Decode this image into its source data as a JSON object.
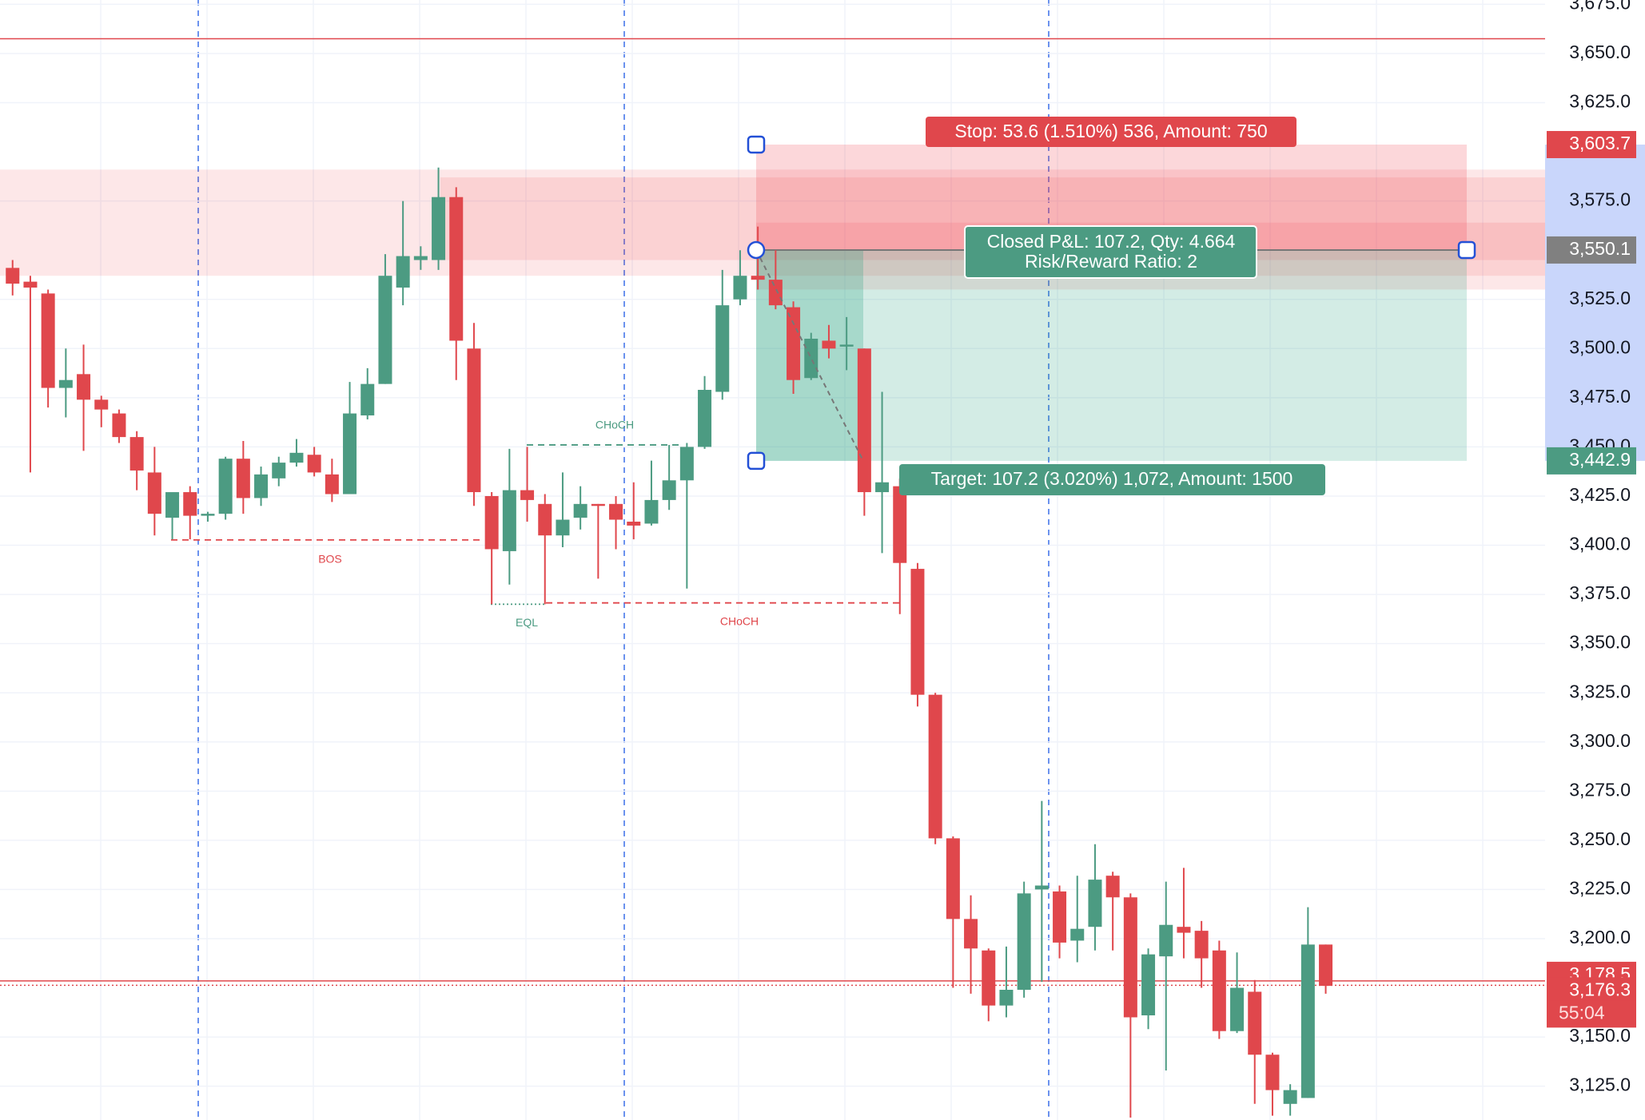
{
  "chart_data": {
    "type": "candlestick",
    "up_color": "#4c9b82",
    "down_color": "#e0474c",
    "candles": {
      "open": [
        3541,
        3534,
        3528,
        3480,
        3487,
        3474,
        3467,
        3455,
        3437,
        3414,
        3427,
        3415,
        3416,
        3444,
        3424,
        3434,
        3442,
        3446,
        3436,
        3426,
        3466,
        3482,
        3531,
        3545,
        3545,
        3577,
        3500,
        3425,
        3397,
        3428,
        3421,
        3405,
        3414,
        3421,
        3421,
        3412,
        3411,
        3423,
        3433,
        3450,
        3478,
        3525,
        3537,
        3535,
        3521,
        3485,
        3504,
        3501,
        3500,
        3427,
        3430,
        3388,
        3324,
        3251,
        3210,
        3194,
        3166,
        3174,
        3225,
        3224,
        3199,
        3206,
        3232,
        3221,
        3161,
        3191,
        3206,
        3204,
        3194,
        3153,
        3173,
        3141,
        3116,
        3119,
        3197
      ],
      "high": [
        3545,
        3537,
        3530,
        3500,
        3502,
        3476,
        3469,
        3458,
        3450,
        3426,
        3430,
        3417,
        3445,
        3453,
        3440,
        3445,
        3454,
        3450,
        3444,
        3483,
        3490,
        3548,
        3575,
        3552,
        3592,
        3582,
        3513,
        3427,
        3449,
        3450,
        3426,
        3437,
        3430,
        3421,
        3425,
        3432,
        3443,
        3451,
        3452,
        3486,
        3540,
        3550,
        3562,
        3550,
        3524,
        3508,
        3512,
        3516,
        3500,
        3478,
        3434,
        3391,
        3325,
        3252,
        3222,
        3195,
        3196,
        3229,
        3270,
        3227,
        3232,
        3248,
        3234,
        3223,
        3195,
        3229,
        3236,
        3209,
        3199,
        3193,
        3179,
        3142,
        3126,
        3216,
        3197
      ],
      "low": [
        3527,
        3437,
        3470,
        3465,
        3448,
        3460,
        3452,
        3428,
        3405,
        3403,
        3403,
        3412,
        3413,
        3416,
        3420,
        3430,
        3440,
        3435,
        3422,
        3426,
        3464,
        3482,
        3522,
        3540,
        3540,
        3484,
        3420,
        3370,
        3380,
        3412,
        3370,
        3399,
        3408,
        3383,
        3398,
        3403,
        3410,
        3418,
        3378,
        3449,
        3474,
        3522,
        3530,
        3520,
        3477,
        3484,
        3495,
        3489,
        3415,
        3396,
        3365,
        3318,
        3248,
        3175,
        3172,
        3158,
        3160,
        3170,
        3178,
        3190,
        3188,
        3194,
        3194,
        3109,
        3154,
        3133,
        3190,
        3175,
        3149,
        3152,
        3116,
        3110,
        3110,
        3119,
        3172
      ],
      "close": [
        3533,
        3531,
        3480,
        3484,
        3474,
        3469,
        3455,
        3438,
        3416,
        3427,
        3415,
        3416,
        3444,
        3424,
        3436,
        3442,
        3447,
        3437,
        3426,
        3467,
        3482,
        3537,
        3547,
        3547,
        3577,
        3504,
        3427,
        3398,
        3428,
        3423,
        3405,
        3413,
        3421,
        3420,
        3413,
        3410,
        3423,
        3433,
        3450,
        3479,
        3522,
        3537,
        3535,
        3522,
        3484,
        3505,
        3500,
        3502,
        3427,
        3432,
        3391,
        3324,
        3251,
        3210,
        3195,
        3166,
        3174,
        3223,
        3227,
        3198,
        3205,
        3230,
        3221,
        3160,
        3192,
        3207,
        3203,
        3190,
        3153,
        3175,
        3141,
        3123,
        3123,
        3197,
        3176
      ]
    },
    "ylim": [
      3107.8,
      3677.2
    ],
    "yticks": [
      {
        "value": 3675,
        "label": "3,675.0"
      },
      {
        "value": 3650,
        "label": "3,650.0"
      },
      {
        "value": 3625,
        "label": "3,625.0"
      },
      {
        "value": 3575,
        "label": "3,575.0"
      },
      {
        "value": 3525,
        "label": "3,525.0"
      },
      {
        "value": 3500,
        "label": "3,500.0"
      },
      {
        "value": 3475,
        "label": "3,475.0"
      },
      {
        "value": 3450,
        "label": "3,450.0"
      },
      {
        "value": 3425,
        "label": "3,425.0"
      },
      {
        "value": 3400,
        "label": "3,400.0"
      },
      {
        "value": 3375,
        "label": "3,375.0"
      },
      {
        "value": 3350,
        "label": "3,350.0"
      },
      {
        "value": 3325,
        "label": "3,325.0"
      },
      {
        "value": 3300,
        "label": "3,300.0"
      },
      {
        "value": 3275,
        "label": "3,275.0"
      },
      {
        "value": 3250,
        "label": "3,250.0"
      },
      {
        "value": 3225,
        "label": "3,225.0"
      },
      {
        "value": 3200,
        "label": "3,200.0"
      },
      {
        "value": 3150,
        "label": "3,150.0"
      },
      {
        "value": 3125,
        "label": "3,125.0"
      }
    ],
    "grid": true,
    "hlines": [
      {
        "value": 3657.5,
        "color": "#e0474c",
        "style": "solid"
      },
      {
        "value": 3178.5,
        "color": "#e0474c",
        "style": "solid"
      },
      {
        "value": 3176.3,
        "color": "#e0474c",
        "style": "dotted"
      }
    ],
    "zones": [
      {
        "low": 3537,
        "high": 3591,
        "color": "#f23645"
      },
      {
        "low": 3545,
        "high": 3587,
        "color": "#f23645"
      },
      {
        "low": 3530,
        "high": 3564,
        "color": "#f23645"
      }
    ],
    "structure": [
      {
        "label": "BOS",
        "value": 3402.7,
        "color": "#e0474c"
      },
      {
        "label": "CHoCH",
        "value": 3451,
        "color": "#4c9b82"
      },
      {
        "label": "CHoCH",
        "value": 3370.7,
        "color": "#e0474c"
      },
      {
        "label": "EQL",
        "value": 3370,
        "color": "#4c9b82"
      }
    ],
    "position": {
      "entry": 3550.1,
      "stop": 3603.7,
      "target": 3442.9,
      "stop_label": "Stop: 53.6 (1.510%) 536, Amount: 750",
      "pnl_label": "Closed P&L: 107.2, Qty: 4.664",
      "rr_label": "Risk/Reward Ratio: 2",
      "target_label": "Target: 107.2 (3.020%) 1,072, Amount: 1500"
    },
    "price_labels": [
      {
        "value": 3603.7,
        "label": "3,603.7",
        "color": "#e0474c"
      },
      {
        "value": 3550.1,
        "label": "3,550.1",
        "color": "#808080"
      },
      {
        "value": 3442.9,
        "label": "3,442.9",
        "color": "#4c9b82"
      },
      {
        "value": 3178.5,
        "label": "3,178.5",
        "color": "#e0474c"
      },
      {
        "value": 3176.3,
        "label": "3,176.3",
        "color": "#e0474c"
      }
    ],
    "countdown": "55:04"
  }
}
